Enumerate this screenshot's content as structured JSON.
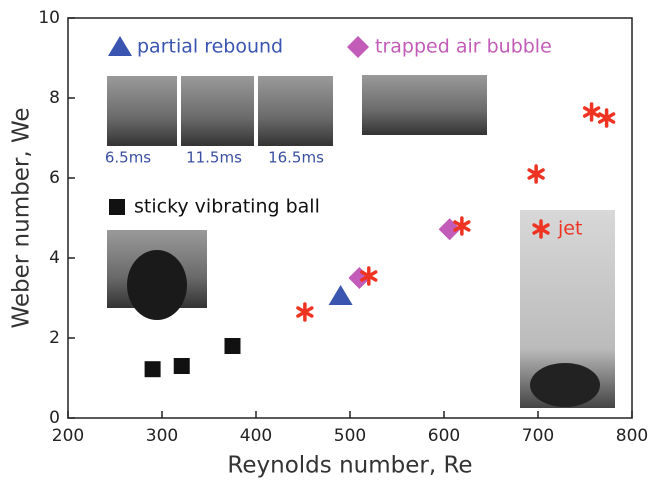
{
  "chart_data": {
    "type": "scatter",
    "xlabel": "Reynolds number, Re",
    "ylabel": "Weber number, We",
    "xlim": [
      200,
      800
    ],
    "xticks": [
      200,
      300,
      400,
      500,
      600,
      700,
      800
    ],
    "ylim": [
      0,
      10
    ],
    "yticks": [
      0,
      2,
      4,
      6,
      8,
      10
    ],
    "annotations": [
      "6.5ms",
      "11.5ms",
      "16.5ms"
    ],
    "series": [
      {
        "name": "sticky vibrating ball",
        "color": "#111111",
        "marker": "square",
        "x": [
          290,
          321,
          375
        ],
        "y": [
          1.22,
          1.3,
          1.8
        ]
      },
      {
        "name": "partial rebound",
        "color": "#3a55b0",
        "marker": "triangle",
        "x": [
          490
        ],
        "y": [
          3.05
        ]
      },
      {
        "name": "trapped air bubble",
        "color": "#c25cb8",
        "marker": "diamond",
        "x": [
          510,
          606
        ],
        "y": [
          3.5,
          4.72
        ]
      },
      {
        "name": "jet",
        "color": "#ee3322",
        "marker": "star",
        "x": [
          452,
          520,
          619,
          698,
          757,
          773
        ],
        "y": [
          2.65,
          3.55,
          4.8,
          6.1,
          7.65,
          7.5
        ]
      }
    ]
  }
}
